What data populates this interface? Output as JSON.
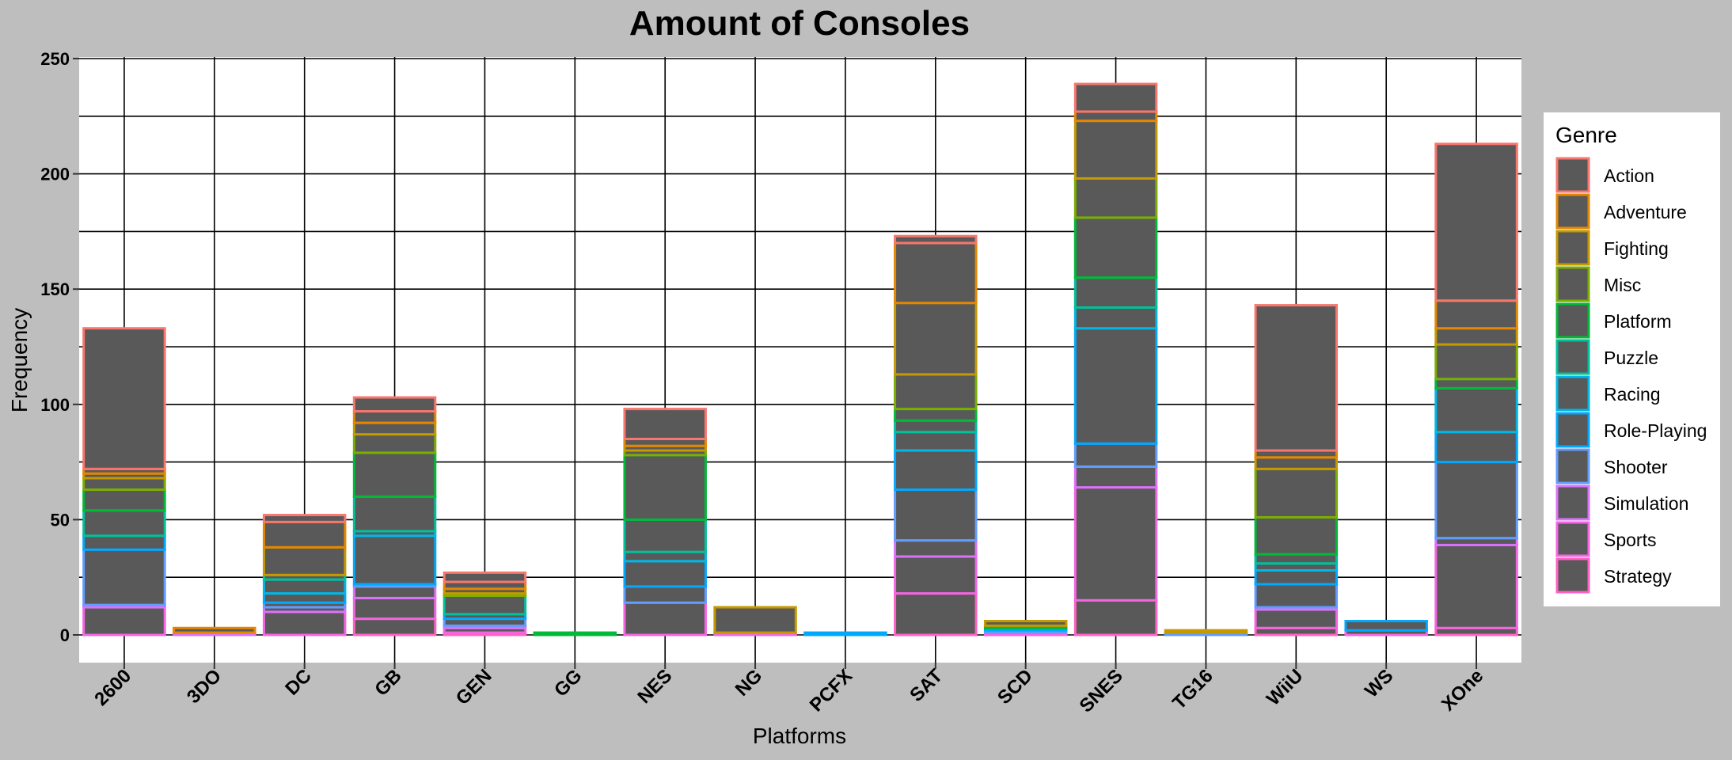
{
  "chart_data": {
    "type": "bar",
    "stacked": true,
    "title": "Amount of Consoles",
    "xlabel": "Platforms",
    "ylabel": "Frequency",
    "ylim": [
      0,
      250
    ],
    "yticks": [
      0,
      50,
      100,
      150,
      200,
      250
    ],
    "grid": true,
    "legend_title": "Genre",
    "legend_position": "right",
    "bar_fill": "#595959",
    "categories": [
      "2600",
      "3DO",
      "DC",
      "GB",
      "GEN",
      "GG",
      "NES",
      "NG",
      "PCFX",
      "SAT",
      "SCD",
      "SNES",
      "TG16",
      "WiiU",
      "WS",
      "XOne"
    ],
    "series": [
      {
        "name": "Strategy",
        "color": "#FF61C3",
        "values": [
          0,
          0,
          0,
          7,
          1,
          0,
          0,
          0,
          0,
          18,
          0,
          15,
          0,
          3,
          0,
          3
        ]
      },
      {
        "name": "Sports",
        "color": "#F564E3",
        "values": [
          12,
          0,
          10,
          9,
          2,
          0,
          14,
          1,
          0,
          16,
          1,
          49,
          0,
          8,
          2,
          36
        ]
      },
      {
        "name": "Simulation",
        "color": "#DB72FB",
        "values": [
          1,
          1,
          2,
          5,
          1,
          0,
          0,
          0,
          0,
          7,
          0,
          9,
          0,
          1,
          0,
          3
        ]
      },
      {
        "name": "Shooter",
        "color": "#619CFF",
        "values": [
          24,
          0,
          2,
          1,
          3,
          0,
          7,
          0,
          0,
          22,
          1,
          10,
          1,
          10,
          0,
          33
        ]
      },
      {
        "name": "Role-Playing",
        "color": "#00A9FF",
        "values": [
          6,
          0,
          4,
          21,
          2,
          0,
          11,
          0,
          1,
          17,
          1,
          50,
          0,
          6,
          4,
          13
        ]
      },
      {
        "name": "Racing",
        "color": "#00B8E7",
        "values": [
          0,
          0,
          6,
          2,
          0,
          0,
          4,
          0,
          0,
          8,
          0,
          9,
          0,
          3,
          0,
          19
        ]
      },
      {
        "name": "Puzzle",
        "color": "#00C19A",
        "values": [
          11,
          0,
          2,
          15,
          8,
          0,
          14,
          0,
          0,
          5,
          0,
          13,
          0,
          4,
          0,
          0
        ]
      },
      {
        "name": "Platform",
        "color": "#00BA38",
        "values": [
          9,
          0,
          0,
          19,
          0,
          1,
          28,
          0,
          0,
          5,
          1,
          26,
          0,
          16,
          0,
          4
        ]
      },
      {
        "name": "Misc",
        "color": "#7CAE00",
        "values": [
          5,
          0,
          0,
          8,
          1,
          0,
          2,
          0,
          0,
          15,
          0,
          17,
          0,
          21,
          0,
          15
        ]
      },
      {
        "name": "Fighting",
        "color": "#C49A00",
        "values": [
          2,
          0,
          12,
          5,
          2,
          0,
          2,
          11,
          0,
          31,
          2,
          25,
          1,
          5,
          0,
          7
        ]
      },
      {
        "name": "Adventure",
        "color": "#E58700",
        "values": [
          2,
          2,
          11,
          5,
          3,
          0,
          3,
          0,
          0,
          26,
          0,
          4,
          0,
          3,
          0,
          12
        ]
      },
      {
        "name": "Action",
        "color": "#F8766D",
        "values": [
          61,
          0,
          3,
          6,
          4,
          0,
          13,
          0,
          0,
          3,
          0,
          12,
          0,
          63,
          0,
          68
        ]
      }
    ]
  }
}
